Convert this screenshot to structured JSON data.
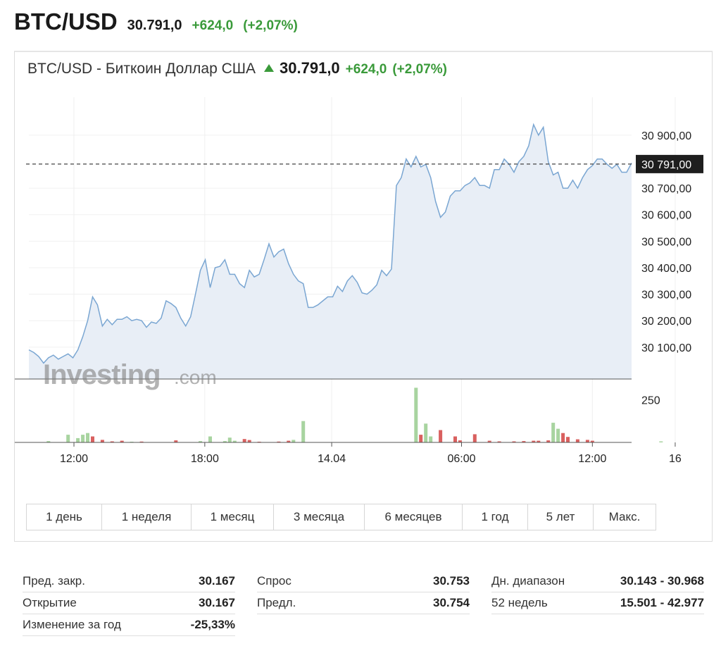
{
  "header": {
    "symbol": "BTC/USD",
    "price": "30.791,0",
    "change": "+624,0",
    "change_pct": "(+2,07%)"
  },
  "chart_header": {
    "name": "BTC/USD - Биткоин Доллар США",
    "price": "30.791,0",
    "change": "+624,0",
    "change_pct": "(+2,07%)"
  },
  "colors": {
    "up": "#3a9a3a",
    "line": "#7aa6d2",
    "area": "#e8eef6",
    "vol_up": "#a8d4a0",
    "vol_down": "#d9605f",
    "current_label_bg": "#1e1e1e"
  },
  "watermark": {
    "brand": "Investing",
    "suffix": ".com"
  },
  "current_price_label": "30 791,00",
  "chart_data": {
    "type": "line",
    "ylim": [
      29980,
      30990
    ],
    "yticks": [
      30100,
      30200,
      30300,
      30400,
      30500,
      30600,
      30700,
      30900
    ],
    "ytick_labels": [
      "30 100,00",
      "30 200,00",
      "30 300,00",
      "30 400,00",
      "30 500,00",
      "30 600,00",
      "30 700,00",
      "30 900,00"
    ],
    "current_price": 30791,
    "xticks": [
      {
        "i": 9.2,
        "label": "12:00"
      },
      {
        "i": 35.9,
        "label": "18:00"
      },
      {
        "i": 61.8,
        "label": "14.04"
      },
      {
        "i": 88.3,
        "label": "06:00"
      },
      {
        "i": 115.0,
        "label": "12:00"
      },
      {
        "i": 131.9,
        "label": "16"
      }
    ],
    "values": [
      30090,
      30080,
      30065,
      30040,
      30060,
      30070,
      30055,
      30065,
      30075,
      30060,
      30090,
      30140,
      30200,
      30290,
      30260,
      30180,
      30205,
      30185,
      30205,
      30205,
      30215,
      30200,
      30205,
      30200,
      30175,
      30195,
      30190,
      30210,
      30275,
      30265,
      30250,
      30210,
      30180,
      30215,
      30300,
      30390,
      30430,
      30325,
      30400,
      30405,
      30430,
      30375,
      30375,
      30340,
      30325,
      30390,
      30365,
      30375,
      30430,
      30490,
      30440,
      30460,
      30470,
      30415,
      30375,
      30350,
      30340,
      30250,
      30250,
      30260,
      30275,
      30290,
      30290,
      30330,
      30310,
      30350,
      30370,
      30345,
      30305,
      30300,
      30315,
      30335,
      30390,
      30370,
      30395,
      30710,
      30740,
      30810,
      30780,
      30820,
      30780,
      30790,
      30740,
      30650,
      30590,
      30610,
      30670,
      30690,
      30690,
      30710,
      30720,
      30740,
      30710,
      30710,
      30700,
      30770,
      30770,
      30810,
      30790,
      30760,
      30800,
      30820,
      30860,
      30940,
      30900,
      30930,
      30800,
      30750,
      30760,
      30700,
      30700,
      30730,
      30700,
      30740,
      30770,
      30785,
      30810,
      30810,
      30790,
      30775,
      30790,
      30760,
      30760,
      30795
    ],
    "volume": {
      "ylabel_tick": "250",
      "ylabel_value": 250,
      "ymax": 330,
      "bars": [
        {
          "i": 4,
          "v": 8,
          "up": true
        },
        {
          "i": 8,
          "v": 45,
          "up": true
        },
        {
          "i": 10,
          "v": 25,
          "up": true
        },
        {
          "i": 11,
          "v": 45,
          "up": true
        },
        {
          "i": 12,
          "v": 55,
          "up": true
        },
        {
          "i": 13,
          "v": 35,
          "up": false
        },
        {
          "i": 15,
          "v": 15,
          "up": false
        },
        {
          "i": 17,
          "v": 6,
          "up": false
        },
        {
          "i": 19,
          "v": 10,
          "up": false
        },
        {
          "i": 21,
          "v": 4,
          "up": true
        },
        {
          "i": 23,
          "v": 5,
          "up": false
        },
        {
          "i": 30,
          "v": 12,
          "up": false
        },
        {
          "i": 35,
          "v": 8,
          "up": true
        },
        {
          "i": 37,
          "v": 35,
          "up": true
        },
        {
          "i": 40,
          "v": 8,
          "up": true
        },
        {
          "i": 41,
          "v": 28,
          "up": true
        },
        {
          "i": 42,
          "v": 10,
          "up": true
        },
        {
          "i": 44,
          "v": 20,
          "up": false
        },
        {
          "i": 45,
          "v": 14,
          "up": false
        },
        {
          "i": 47,
          "v": 4,
          "up": false
        },
        {
          "i": 51,
          "v": 5,
          "up": false
        },
        {
          "i": 53,
          "v": 10,
          "up": false
        },
        {
          "i": 54,
          "v": 15,
          "up": true
        },
        {
          "i": 56,
          "v": 125,
          "up": true
        },
        {
          "i": 79,
          "v": 320,
          "up": true
        },
        {
          "i": 80,
          "v": 45,
          "up": false
        },
        {
          "i": 81,
          "v": 110,
          "up": true
        },
        {
          "i": 82,
          "v": 35,
          "up": true
        },
        {
          "i": 84,
          "v": 72,
          "up": false
        },
        {
          "i": 87,
          "v": 35,
          "up": false
        },
        {
          "i": 88,
          "v": 12,
          "up": false
        },
        {
          "i": 91,
          "v": 48,
          "up": false
        },
        {
          "i": 94,
          "v": 10,
          "up": false
        },
        {
          "i": 96,
          "v": 6,
          "up": false
        },
        {
          "i": 99,
          "v": 6,
          "up": false
        },
        {
          "i": 101,
          "v": 8,
          "up": false
        },
        {
          "i": 103,
          "v": 10,
          "up": false
        },
        {
          "i": 104,
          "v": 10,
          "up": false
        },
        {
          "i": 106,
          "v": 12,
          "up": false
        },
        {
          "i": 107,
          "v": 115,
          "up": true
        },
        {
          "i": 108,
          "v": 80,
          "up": true
        },
        {
          "i": 109,
          "v": 55,
          "up": false
        },
        {
          "i": 110,
          "v": 32,
          "up": false
        },
        {
          "i": 112,
          "v": 18,
          "up": false
        },
        {
          "i": 114,
          "v": 15,
          "up": false
        },
        {
          "i": 115,
          "v": 10,
          "up": false
        },
        {
          "i": 129,
          "v": 6,
          "up": true
        }
      ]
    }
  },
  "periods": [
    {
      "label": "1 день",
      "w": 106
    },
    {
      "label": "1 неделя",
      "w": 126
    },
    {
      "label": "1 месяц",
      "w": 116
    },
    {
      "label": "3 месяца",
      "w": 128
    },
    {
      "label": "6 месяцев",
      "w": 138
    },
    {
      "label": "1 год",
      "w": 92
    },
    {
      "label": "5 лет",
      "w": 92
    },
    {
      "label": "Макс.",
      "w": 88
    }
  ],
  "stats": {
    "col1": [
      {
        "label": "Пред. закр.",
        "value": "30.167"
      },
      {
        "label": "Открытие",
        "value": "30.167"
      },
      {
        "label": "Изменение за год",
        "value": "-25,33%"
      }
    ],
    "col2": [
      {
        "label": "Спрос",
        "value": "30.753"
      },
      {
        "label": "Предл.",
        "value": "30.754"
      }
    ],
    "col3": [
      {
        "label": "Дн. диапазон",
        "value": "30.143 - 30.968"
      },
      {
        "label": "52 недель",
        "value": "15.501 - 42.977"
      }
    ]
  }
}
